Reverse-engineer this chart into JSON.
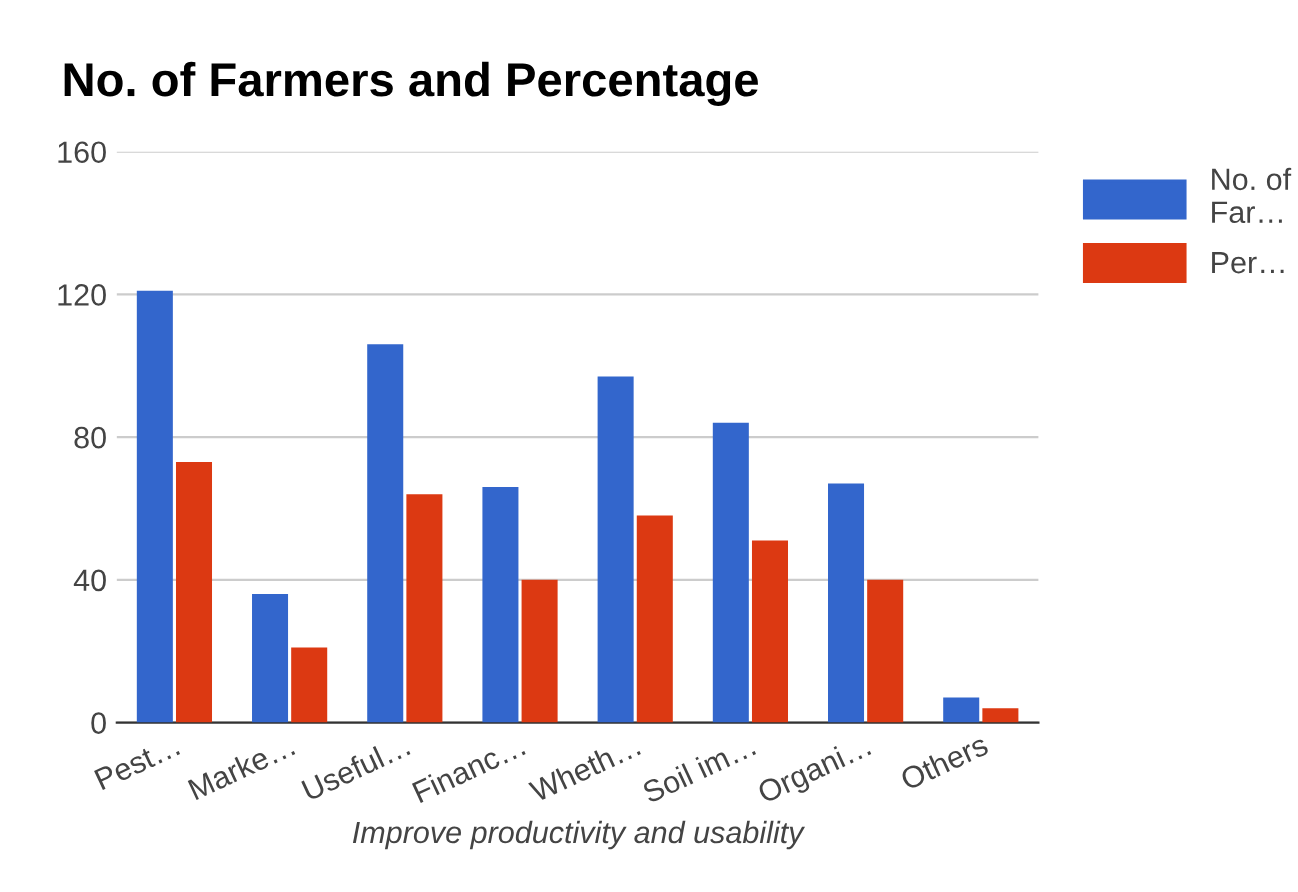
{
  "chart_data": {
    "type": "bar",
    "title": "No. of Farmers and Percentage",
    "xlabel": "Improve productivity and usability",
    "categories": [
      "Pest…",
      "Marke…",
      "Useful…",
      "Financ…",
      "Wheth…",
      "Soil im…",
      "Organi…",
      "Others"
    ],
    "series": [
      {
        "name": "No. of\nFar…",
        "color": "#3366cc",
        "values": [
          121,
          36,
          106,
          66,
          97,
          84,
          67,
          7
        ]
      },
      {
        "name": "Per…",
        "color": "#dc3912",
        "values": [
          73,
          21,
          64,
          40,
          58,
          51,
          40,
          4
        ]
      }
    ],
    "ylim": [
      0,
      160
    ],
    "yticks": [
      0,
      40,
      80,
      120,
      160
    ],
    "grid": "y",
    "legend": "top right"
  }
}
